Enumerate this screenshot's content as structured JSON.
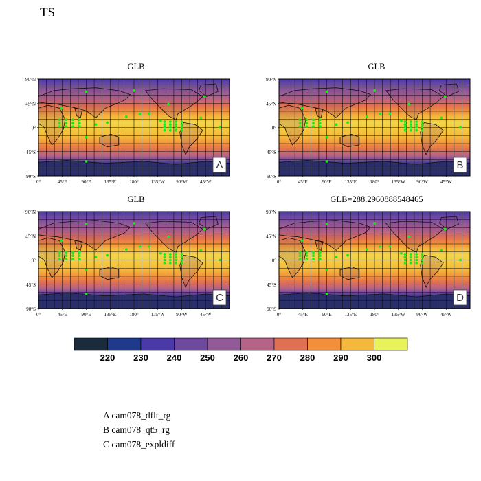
{
  "figure": {
    "title": "TS",
    "panels": [
      {
        "id": "A",
        "title": "GLB"
      },
      {
        "id": "B",
        "title": "GLB"
      },
      {
        "id": "C",
        "title": "GLB"
      },
      {
        "id": "D",
        "title": "GLB=288.2960888548465"
      }
    ],
    "lat_ticks": [
      "90°N",
      "45°N",
      "0°",
      "45°S",
      "90°S"
    ],
    "lon_ticks": [
      "0°",
      "45°E",
      "90°E",
      "135°E",
      "180°",
      "135°W",
      "90°W",
      "45°W"
    ]
  },
  "colorbar": {
    "colors": [
      "#1a2b3c",
      "#1f3a8a",
      "#4a3aa8",
      "#6e4a9e",
      "#935a98",
      "#b56488",
      "#e07052",
      "#f28f3a",
      "#f4b83c",
      "#e8f25a"
    ],
    "labels": [
      "220",
      "230",
      "240",
      "250",
      "260",
      "270",
      "280",
      "290",
      "300"
    ]
  },
  "legend": [
    "A  cam078_dflt_rg",
    "B  cam078_qt5_rg",
    "C  cam078_expldiff"
  ]
}
